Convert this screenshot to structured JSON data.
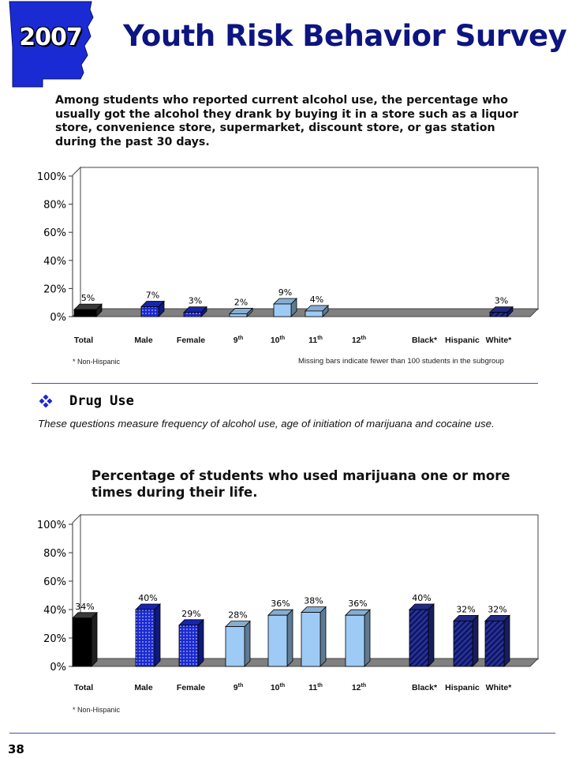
{
  "header": {
    "year": "2007",
    "title": "Youth Risk Behavior Survey",
    "state_fill": "#1b2bd4"
  },
  "chart1": {
    "caption": "Among students who reported current alcohol use, the percentage who usually got the alcohol they drank by buying it in a store such as a liquor store, convenience store,  supermarket, discount store, or gas station during the past 30 days.",
    "note_left": "* Non-Hispanic",
    "note_right": "Missing bars indicate fewer than 100 students in the subgroup"
  },
  "section": {
    "heading": "Drug Use",
    "description": "These questions measure  frequency  of alcohol use,  age of initiation of marijuana and cocaine use."
  },
  "chart2": {
    "caption": "Percentage of students who used marijuana one or more times during their life.",
    "note_left": "* Non-Hispanic"
  },
  "footer": {
    "page_number": "38"
  },
  "chart_data": [
    {
      "type": "bar",
      "title": "",
      "xlabel": "",
      "ylabel": "",
      "ylim": [
        0,
        100
      ],
      "yticks": [
        "0%",
        "20%",
        "40%",
        "60%",
        "80%",
        "100%"
      ],
      "categories": [
        {
          "label": "Total",
          "sup": ""
        },
        {
          "label": "Male",
          "sup": ""
        },
        {
          "label": "Female",
          "sup": ""
        },
        {
          "label": "9",
          "sup": "th"
        },
        {
          "label": "10",
          "sup": "th"
        },
        {
          "label": "11",
          "sup": "th"
        },
        {
          "label": "12",
          "sup": "th"
        },
        {
          "label": "Black*",
          "sup": ""
        },
        {
          "label": "Hispanic",
          "sup": ""
        },
        {
          "label": "White*",
          "sup": ""
        }
      ],
      "values": [
        5,
        7,
        3,
        2,
        9,
        4,
        null,
        null,
        null,
        3
      ],
      "value_labels": [
        "5%",
        "7%",
        "3%",
        "2%",
        "9%",
        "4%",
        "",
        "",
        "",
        "3%"
      ],
      "legend": "none",
      "grid": false,
      "colors": {
        "total": "#000000",
        "gender": "#1a2ad0",
        "grade": "#9ecbf5",
        "race": "#26309a"
      }
    },
    {
      "type": "bar",
      "title": "",
      "xlabel": "",
      "ylabel": "",
      "ylim": [
        0,
        100
      ],
      "yticks": [
        "0%",
        "20%",
        "40%",
        "60%",
        "80%",
        "100%"
      ],
      "categories": [
        {
          "label": "Total",
          "sup": ""
        },
        {
          "label": "Male",
          "sup": ""
        },
        {
          "label": "Female",
          "sup": ""
        },
        {
          "label": "9",
          "sup": "th"
        },
        {
          "label": "10",
          "sup": "th"
        },
        {
          "label": "11",
          "sup": "th"
        },
        {
          "label": "12",
          "sup": "th"
        },
        {
          "label": "Black*",
          "sup": ""
        },
        {
          "label": "Hispanic",
          "sup": ""
        },
        {
          "label": "White*",
          "sup": ""
        }
      ],
      "values": [
        34,
        40,
        29,
        28,
        36,
        38,
        36,
        40,
        32,
        32
      ],
      "value_labels": [
        "34%",
        "40%",
        "29%",
        "28%",
        "36%",
        "38%",
        "36%",
        "40%",
        "32%",
        "32%"
      ],
      "legend": "none",
      "grid": false,
      "colors": {
        "total": "#000000",
        "gender": "#1a2ad0",
        "grade": "#9ecbf5",
        "race": "#26309a"
      }
    }
  ]
}
